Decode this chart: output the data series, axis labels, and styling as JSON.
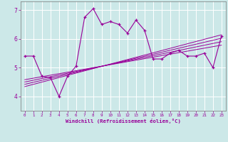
{
  "xlabel": "Windchill (Refroidissement éolien,°C)",
  "bg_color": "#cce8e8",
  "line_color": "#990099",
  "grid_color": "#ffffff",
  "xlim": [
    -0.5,
    23.5
  ],
  "ylim": [
    3.5,
    7.3
  ],
  "yticks": [
    4,
    5,
    6,
    7
  ],
  "xticks": [
    0,
    1,
    2,
    3,
    4,
    5,
    6,
    7,
    8,
    9,
    10,
    11,
    12,
    13,
    14,
    15,
    16,
    17,
    18,
    19,
    20,
    21,
    22,
    23
  ],
  "data_x": [
    0,
    1,
    2,
    3,
    4,
    5,
    6,
    7,
    8,
    9,
    10,
    11,
    12,
    13,
    14,
    15,
    16,
    17,
    18,
    19,
    20,
    21,
    22,
    23
  ],
  "data_y": [
    5.4,
    5.4,
    4.7,
    4.65,
    4.0,
    4.7,
    5.05,
    6.75,
    7.05,
    6.5,
    6.6,
    6.5,
    6.2,
    6.65,
    6.3,
    5.3,
    5.3,
    5.5,
    5.6,
    5.4,
    5.4,
    5.5,
    5.0,
    6.1
  ],
  "reg_lines": [
    {
      "x0": 0,
      "y0": 4.58,
      "x1": 23,
      "y1": 5.78
    },
    {
      "x0": 0,
      "y0": 4.5,
      "x1": 23,
      "y1": 5.9
    },
    {
      "x0": 0,
      "y0": 4.42,
      "x1": 23,
      "y1": 6.02
    },
    {
      "x0": 0,
      "y0": 4.34,
      "x1": 23,
      "y1": 6.14
    }
  ]
}
